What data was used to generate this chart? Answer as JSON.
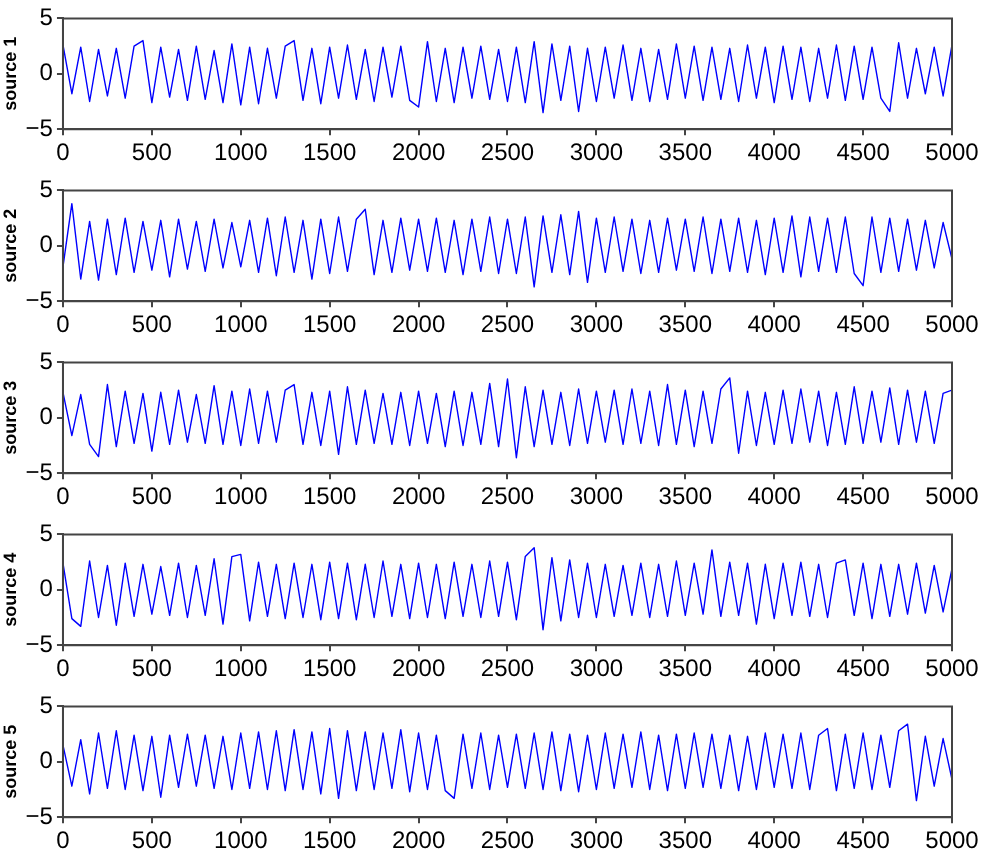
{
  "chart_data": [
    {
      "type": "line",
      "ylabel": "source 1",
      "color": "#0000ff",
      "marker": "none",
      "line_style": "solid",
      "grid": false,
      "xlim": [
        0,
        5000
      ],
      "xticks": [
        0,
        500,
        1000,
        1500,
        2000,
        2500,
        3000,
        3500,
        4000,
        4500,
        5000
      ],
      "ylim": [
        -5,
        5
      ],
      "yticks": [
        -5,
        0,
        5
      ],
      "x": [
        0,
        50,
        100,
        150,
        200,
        250,
        300,
        350,
        400,
        450,
        500,
        550,
        600,
        650,
        700,
        750,
        800,
        850,
        900,
        950,
        1000,
        1050,
        1100,
        1150,
        1200,
        1250,
        1300,
        1350,
        1400,
        1450,
        1500,
        1550,
        1600,
        1650,
        1700,
        1750,
        1800,
        1850,
        1900,
        1950,
        2000,
        2050,
        2100,
        2150,
        2200,
        2250,
        2300,
        2350,
        2400,
        2450,
        2500,
        2550,
        2600,
        2650,
        2700,
        2750,
        2800,
        2850,
        2900,
        2950,
        3000,
        3050,
        3100,
        3150,
        3200,
        3250,
        3300,
        3350,
        3400,
        3450,
        3500,
        3550,
        3600,
        3650,
        3700,
        3750,
        3800,
        3850,
        3900,
        3950,
        4000,
        4050,
        4100,
        4150,
        4200,
        4250,
        4300,
        4350,
        4400,
        4450,
        4500,
        4550,
        4600,
        4650,
        4700,
        4750,
        4800,
        4850,
        4900,
        4950,
        5000
      ],
      "values": [
        2.6,
        -1.8,
        2.4,
        -2.5,
        2.2,
        -2.0,
        2.3,
        -2.2,
        2.5,
        3.0,
        -2.6,
        2.4,
        -2.1,
        2.2,
        -2.4,
        2.5,
        -2.3,
        2.1,
        -2.6,
        2.7,
        -2.8,
        2.4,
        -2.7,
        2.3,
        -2.2,
        2.5,
        3.0,
        -2.4,
        2.3,
        -2.7,
        2.4,
        -2.2,
        2.6,
        -2.3,
        2.2,
        -2.5,
        2.4,
        -2.1,
        2.5,
        -2.4,
        -3.0,
        2.9,
        -2.5,
        2.3,
        -2.6,
        2.4,
        -2.2,
        2.5,
        -2.3,
        2.2,
        -2.5,
        2.4,
        -2.6,
        2.9,
        -3.5,
        2.7,
        -2.4,
        2.5,
        -3.4,
        2.3,
        -2.5,
        2.4,
        -2.2,
        2.6,
        -2.4,
        2.3,
        -2.5,
        2.2,
        -2.3,
        2.7,
        -2.2,
        2.5,
        -2.4,
        2.4,
        -2.3,
        2.3,
        -2.5,
        2.6,
        -2.2,
        2.4,
        -2.6,
        2.5,
        -2.3,
        2.4,
        -2.5,
        2.3,
        -2.2,
        2.6,
        -2.4,
        2.5,
        -2.3,
        2.4,
        -2.2,
        -3.4,
        2.8,
        -2.2,
        2.3,
        -1.8,
        2.4,
        -2.0,
        2.6
      ]
    },
    {
      "type": "line",
      "ylabel": "source 2",
      "color": "#0000ff",
      "marker": "none",
      "line_style": "solid",
      "grid": false,
      "xlim": [
        0,
        5000
      ],
      "xticks": [
        0,
        500,
        1000,
        1500,
        2000,
        2500,
        3000,
        3500,
        4000,
        4500,
        5000
      ],
      "ylim": [
        -5,
        5
      ],
      "yticks": [
        -5,
        0,
        5
      ],
      "x": [
        0,
        50,
        100,
        150,
        200,
        250,
        300,
        350,
        400,
        450,
        500,
        550,
        600,
        650,
        700,
        750,
        800,
        850,
        900,
        950,
        1000,
        1050,
        1100,
        1150,
        1200,
        1250,
        1300,
        1350,
        1400,
        1450,
        1500,
        1550,
        1600,
        1650,
        1700,
        1750,
        1800,
        1850,
        1900,
        1950,
        2000,
        2050,
        2100,
        2150,
        2200,
        2250,
        2300,
        2350,
        2400,
        2450,
        2500,
        2550,
        2600,
        2650,
        2700,
        2750,
        2800,
        2850,
        2900,
        2950,
        3000,
        3050,
        3100,
        3150,
        3200,
        3250,
        3300,
        3350,
        3400,
        3450,
        3500,
        3550,
        3600,
        3650,
        3700,
        3750,
        3800,
        3850,
        3900,
        3950,
        4000,
        4050,
        4100,
        4150,
        4200,
        4250,
        4300,
        4350,
        4400,
        4450,
        4500,
        4550,
        4600,
        4650,
        4700,
        4750,
        4800,
        4850,
        4900,
        4950,
        5000
      ],
      "values": [
        -1.9,
        3.8,
        -3.0,
        2.2,
        -3.1,
        2.4,
        -2.6,
        2.5,
        -2.4,
        2.2,
        -2.2,
        2.3,
        -2.8,
        2.4,
        -2.1,
        2.2,
        -2.3,
        2.4,
        -2.0,
        2.1,
        -1.9,
        2.3,
        -2.4,
        2.5,
        -2.7,
        2.6,
        -2.4,
        2.3,
        -3.0,
        2.4,
        -2.5,
        2.6,
        -2.3,
        2.4,
        3.3,
        -2.6,
        2.3,
        -2.4,
        2.5,
        -2.2,
        2.4,
        -2.3,
        2.5,
        -2.4,
        2.3,
        -2.6,
        2.4,
        -2.3,
        2.6,
        -2.5,
        2.4,
        -2.5,
        2.6,
        -3.7,
        2.7,
        -2.4,
        2.8,
        -2.6,
        3.1,
        -3.3,
        2.5,
        -2.4,
        2.6,
        -2.3,
        2.4,
        -2.5,
        2.3,
        -2.4,
        2.5,
        -2.2,
        2.4,
        -2.3,
        2.6,
        -2.5,
        2.4,
        -2.3,
        2.5,
        -2.4,
        2.3,
        -2.6,
        2.5,
        -2.4,
        2.7,
        -2.8,
        2.6,
        -2.3,
        2.5,
        -2.4,
        2.6,
        -2.5,
        -3.6,
        2.6,
        -2.4,
        2.5,
        -2.3,
        2.4,
        -2.2,
        2.3,
        -2.0,
        2.1,
        -1.2
      ]
    },
    {
      "type": "line",
      "ylabel": "source 3",
      "color": "#0000ff",
      "marker": "none",
      "line_style": "solid",
      "grid": false,
      "xlim": [
        0,
        5000
      ],
      "xticks": [
        0,
        500,
        1000,
        1500,
        2000,
        2500,
        3000,
        3500,
        4000,
        4500,
        5000
      ],
      "ylim": [
        -5,
        5
      ],
      "yticks": [
        -5,
        0,
        5
      ],
      "x": [
        0,
        50,
        100,
        150,
        200,
        250,
        300,
        350,
        400,
        450,
        500,
        550,
        600,
        650,
        700,
        750,
        800,
        850,
        900,
        950,
        1000,
        1050,
        1100,
        1150,
        1200,
        1250,
        1300,
        1350,
        1400,
        1450,
        1500,
        1550,
        1600,
        1650,
        1700,
        1750,
        1800,
        1850,
        1900,
        1950,
        2000,
        2050,
        2100,
        2150,
        2200,
        2250,
        2300,
        2350,
        2400,
        2450,
        2500,
        2550,
        2600,
        2650,
        2700,
        2750,
        2800,
        2850,
        2900,
        2950,
        3000,
        3050,
        3100,
        3150,
        3200,
        3250,
        3300,
        3350,
        3400,
        3450,
        3500,
        3550,
        3600,
        3650,
        3700,
        3750,
        3800,
        3850,
        3900,
        3950,
        4000,
        4050,
        4100,
        4150,
        4200,
        4250,
        4300,
        4350,
        4400,
        4450,
        4500,
        4550,
        4600,
        4650,
        4700,
        4750,
        4800,
        4850,
        4900,
        4950,
        5000
      ],
      "values": [
        2.3,
        -1.6,
        2.1,
        -2.4,
        -3.5,
        3.0,
        -2.6,
        2.4,
        -2.3,
        2.2,
        -3.0,
        2.3,
        -2.4,
        2.5,
        -2.2,
        2.1,
        -2.3,
        2.9,
        -2.4,
        2.4,
        -2.5,
        2.6,
        -2.3,
        2.4,
        -2.2,
        2.5,
        3.0,
        -2.4,
        2.3,
        -2.5,
        2.4,
        -3.3,
        2.8,
        -2.4,
        2.5,
        -2.3,
        2.2,
        -2.4,
        2.3,
        -2.5,
        2.4,
        -2.3,
        2.2,
        -2.6,
        2.4,
        -2.5,
        2.3,
        -2.4,
        3.1,
        -2.6,
        3.5,
        -3.6,
        2.8,
        -2.6,
        2.5,
        -2.4,
        2.3,
        -2.5,
        2.6,
        -2.3,
        2.4,
        -2.2,
        2.5,
        -2.4,
        2.6,
        -2.3,
        2.4,
        -2.5,
        3.0,
        -2.4,
        2.5,
        -2.6,
        2.4,
        -2.3,
        2.6,
        3.6,
        -3.2,
        2.4,
        -2.5,
        2.3,
        -2.4,
        2.5,
        -2.3,
        2.6,
        -2.2,
        2.4,
        -2.5,
        2.3,
        -2.4,
        2.8,
        -2.3,
        2.4,
        -2.2,
        2.7,
        -2.4,
        2.5,
        -2.2,
        2.4,
        -2.3,
        2.2,
        2.5
      ]
    },
    {
      "type": "line",
      "ylabel": "source 4",
      "color": "#0000ff",
      "marker": "none",
      "line_style": "solid",
      "grid": false,
      "xlim": [
        0,
        5000
      ],
      "xticks": [
        0,
        500,
        1000,
        1500,
        2000,
        2500,
        3000,
        3500,
        4000,
        4500,
        5000
      ],
      "ylim": [
        -5,
        5
      ],
      "yticks": [
        -5,
        0,
        5
      ],
      "x": [
        0,
        50,
        100,
        150,
        200,
        250,
        300,
        350,
        400,
        450,
        500,
        550,
        600,
        650,
        700,
        750,
        800,
        850,
        900,
        950,
        1000,
        1050,
        1100,
        1150,
        1200,
        1250,
        1300,
        1350,
        1400,
        1450,
        1500,
        1550,
        1600,
        1650,
        1700,
        1750,
        1800,
        1850,
        1900,
        1950,
        2000,
        2050,
        2100,
        2150,
        2200,
        2250,
        2300,
        2350,
        2400,
        2450,
        2500,
        2550,
        2600,
        2650,
        2700,
        2750,
        2800,
        2850,
        2900,
        2950,
        3000,
        3050,
        3100,
        3150,
        3200,
        3250,
        3300,
        3350,
        3400,
        3450,
        3500,
        3550,
        3600,
        3650,
        3700,
        3750,
        3800,
        3850,
        3900,
        3950,
        4000,
        4050,
        4100,
        4150,
        4200,
        4250,
        4300,
        4350,
        4400,
        4450,
        4500,
        4550,
        4600,
        4650,
        4700,
        4750,
        4800,
        4850,
        4900,
        4950,
        5000
      ],
      "values": [
        2.4,
        -2.6,
        -3.3,
        2.6,
        -2.5,
        2.2,
        -3.2,
        2.4,
        -2.4,
        2.3,
        -2.2,
        2.1,
        -2.3,
        2.4,
        -2.5,
        2.2,
        -2.3,
        2.8,
        -3.1,
        3.0,
        3.2,
        -2.8,
        2.5,
        -2.4,
        2.3,
        -2.6,
        2.4,
        -2.5,
        2.3,
        -2.7,
        2.5,
        -2.6,
        2.4,
        -2.7,
        2.3,
        -2.5,
        2.6,
        -2.4,
        2.3,
        -2.6,
        2.4,
        -2.5,
        2.3,
        -2.6,
        2.5,
        -2.4,
        2.3,
        -2.5,
        2.6,
        -2.4,
        2.5,
        -2.7,
        3.0,
        3.8,
        -3.6,
        2.9,
        -2.8,
        2.7,
        -2.5,
        2.4,
        -2.5,
        2.3,
        -2.4,
        2.2,
        -2.3,
        2.4,
        -2.5,
        2.3,
        -2.4,
        2.6,
        -2.3,
        2.4,
        -2.2,
        3.6,
        -2.4,
        2.5,
        -2.3,
        2.4,
        -3.1,
        2.3,
        -2.6,
        2.4,
        -2.3,
        2.5,
        -2.4,
        2.3,
        -2.5,
        2.4,
        2.7,
        -2.3,
        2.4,
        -2.6,
        2.3,
        -2.4,
        2.3,
        -2.2,
        2.4,
        -2.1,
        2.2,
        -2.0,
        1.9
      ]
    },
    {
      "type": "line",
      "ylabel": "source 5",
      "color": "#0000ff",
      "marker": "none",
      "line_style": "solid",
      "grid": false,
      "xlim": [
        0,
        5000
      ],
      "xticks": [
        0,
        500,
        1000,
        1500,
        2000,
        2500,
        3000,
        3500,
        4000,
        4500,
        5000
      ],
      "ylim": [
        -5,
        5
      ],
      "yticks": [
        -5,
        0,
        5
      ],
      "x": [
        0,
        50,
        100,
        150,
        200,
        250,
        300,
        350,
        400,
        450,
        500,
        550,
        600,
        650,
        700,
        750,
        800,
        850,
        900,
        950,
        1000,
        1050,
        1100,
        1150,
        1200,
        1250,
        1300,
        1350,
        1400,
        1450,
        1500,
        1550,
        1600,
        1650,
        1700,
        1750,
        1800,
        1850,
        1900,
        1950,
        2000,
        2050,
        2100,
        2150,
        2200,
        2250,
        2300,
        2350,
        2400,
        2450,
        2500,
        2550,
        2600,
        2650,
        2700,
        2750,
        2800,
        2850,
        2900,
        2950,
        3000,
        3050,
        3100,
        3150,
        3200,
        3250,
        3300,
        3350,
        3400,
        3450,
        3500,
        3550,
        3600,
        3650,
        3700,
        3750,
        3800,
        3850,
        3900,
        3950,
        4000,
        4050,
        4100,
        4150,
        4200,
        4250,
        4300,
        4350,
        4400,
        4450,
        4500,
        4550,
        4600,
        4650,
        4700,
        4750,
        4800,
        4850,
        4900,
        4950,
        5000
      ],
      "values": [
        1.5,
        -2.2,
        2.0,
        -2.9,
        2.6,
        -2.4,
        2.8,
        -2.5,
        2.4,
        -2.6,
        2.3,
        -3.2,
        2.4,
        -2.3,
        2.5,
        -2.2,
        2.4,
        -2.4,
        2.3,
        -2.5,
        2.6,
        -2.4,
        2.7,
        -2.5,
        2.8,
        -2.6,
        2.9,
        -2.5,
        2.7,
        -2.9,
        3.0,
        -3.3,
        2.8,
        -2.6,
        2.7,
        -2.5,
        2.6,
        -2.4,
        2.9,
        -2.7,
        2.6,
        -2.5,
        2.4,
        -2.6,
        -3.3,
        2.5,
        -2.4,
        2.6,
        -2.5,
        2.4,
        -2.3,
        2.5,
        -2.4,
        2.6,
        -2.5,
        2.7,
        -2.6,
        2.5,
        -2.7,
        2.4,
        -2.5,
        2.6,
        -2.4,
        2.5,
        -2.3,
        2.7,
        -2.5,
        2.4,
        -2.6,
        2.5,
        -2.4,
        2.6,
        -2.3,
        2.5,
        -2.4,
        2.4,
        -2.6,
        2.3,
        -2.5,
        2.6,
        -2.3,
        2.5,
        -2.4,
        2.6,
        -2.5,
        2.4,
        3.0,
        -2.6,
        2.5,
        -2.4,
        2.6,
        -2.5,
        2.4,
        -2.3,
        2.8,
        3.4,
        -3.5,
        2.3,
        -2.2,
        2.1,
        -1.6
      ]
    }
  ]
}
